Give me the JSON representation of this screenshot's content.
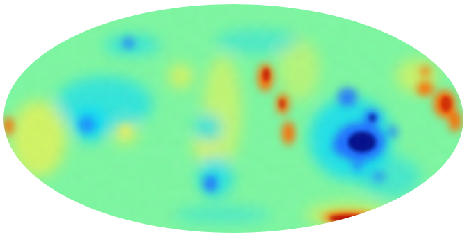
{
  "map": {
    "projection": "mollweide",
    "colormap": "jet",
    "background_color": "#7cf7a0",
    "outline_color": "#ffffff",
    "colors": {
      "very_low": "#000a8c",
      "low": "#1f6fff",
      "low_mid": "#00d8ff",
      "mid": "#6cf8b0",
      "high_mid": "#f7f24a",
      "high": "#ff6a00",
      "very_high": "#b40000"
    }
  }
}
